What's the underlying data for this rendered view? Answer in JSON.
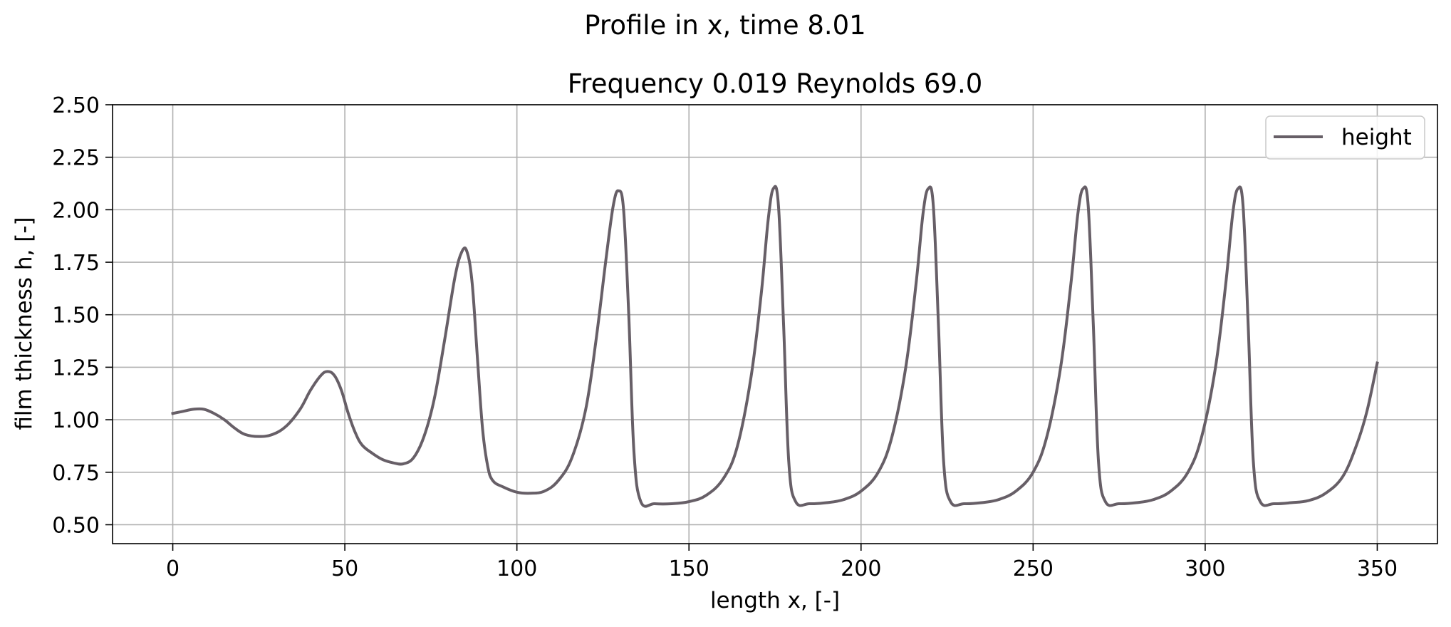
{
  "figure": {
    "suptitle": "Profile in x, time 8.01"
  },
  "chart_data": {
    "type": "line",
    "title": "Frequency 0.019 Reynolds 69.0",
    "xlabel": "length x, [-]",
    "ylabel": "film thickness h, [-]",
    "xlim": [
      -17.5,
      367.5
    ],
    "ylim": [
      0.41,
      2.5
    ],
    "xticks": [
      0,
      50,
      100,
      150,
      200,
      250,
      300,
      350
    ],
    "xtick_labels": [
      "0",
      "50",
      "100",
      "150",
      "200",
      "250",
      "300",
      "350"
    ],
    "yticks": [
      0.5,
      0.75,
      1.0,
      1.25,
      1.5,
      1.75,
      2.0,
      2.25,
      2.5
    ],
    "ytick_labels": [
      "0.50",
      "0.75",
      "1.00",
      "1.25",
      "1.50",
      "1.75",
      "2.00",
      "2.25",
      "2.50"
    ],
    "grid": true,
    "legend_position": "upper right",
    "series": [
      {
        "name": "height",
        "color": "#675f67",
        "x": [
          0,
          3,
          6,
          9,
          12,
          15,
          18,
          21,
          25,
          29,
          33,
          37,
          40,
          43,
          45,
          47,
          49,
          51,
          53,
          55,
          58,
          61,
          64,
          67,
          70,
          73,
          76,
          79,
          82,
          84,
          85.5,
          87,
          88.5,
          90,
          91.5,
          93,
          96,
          100,
          104,
          108,
          112,
          116,
          120,
          123,
          126,
          128,
          129.5,
          131,
          132.5,
          134,
          136,
          140,
          145,
          150,
          155,
          160,
          164,
          168,
          171,
          173,
          174.5,
          176,
          177.5,
          179,
          181,
          185,
          190,
          195,
          200,
          205,
          209,
          213,
          216,
          218,
          219.5,
          221,
          222.5,
          224,
          226,
          230,
          235,
          240,
          245,
          250,
          254,
          258,
          261,
          263,
          264.5,
          266,
          267.5,
          269,
          271,
          275,
          280,
          285,
          290,
          295,
          299,
          303,
          306,
          308,
          309.5,
          311,
          312.5,
          314,
          316,
          320,
          325,
          330,
          335,
          340,
          344,
          347,
          350
        ],
        "y": [
          1.03,
          1.04,
          1.05,
          1.05,
          1.03,
          1.0,
          0.96,
          0.93,
          0.92,
          0.93,
          0.97,
          1.05,
          1.14,
          1.21,
          1.23,
          1.21,
          1.14,
          1.03,
          0.94,
          0.88,
          0.84,
          0.81,
          0.795,
          0.79,
          0.82,
          0.92,
          1.1,
          1.38,
          1.68,
          1.8,
          1.8,
          1.65,
          1.3,
          0.96,
          0.78,
          0.71,
          0.68,
          0.655,
          0.65,
          0.66,
          0.71,
          0.82,
          1.05,
          1.38,
          1.78,
          2.02,
          2.09,
          2.0,
          1.5,
          0.85,
          0.61,
          0.6,
          0.6,
          0.61,
          0.64,
          0.72,
          0.87,
          1.2,
          1.6,
          1.95,
          2.1,
          2.02,
          1.45,
          0.8,
          0.61,
          0.6,
          0.605,
          0.62,
          0.66,
          0.75,
          0.92,
          1.25,
          1.65,
          1.98,
          2.1,
          2.02,
          1.45,
          0.8,
          0.61,
          0.6,
          0.605,
          0.62,
          0.66,
          0.75,
          0.92,
          1.25,
          1.65,
          1.98,
          2.1,
          2.02,
          1.45,
          0.8,
          0.61,
          0.6,
          0.605,
          0.62,
          0.66,
          0.75,
          0.92,
          1.25,
          1.65,
          1.98,
          2.1,
          2.02,
          1.45,
          0.8,
          0.61,
          0.6,
          0.605,
          0.615,
          0.65,
          0.73,
          0.88,
          1.04,
          1.27
        ]
      }
    ]
  }
}
